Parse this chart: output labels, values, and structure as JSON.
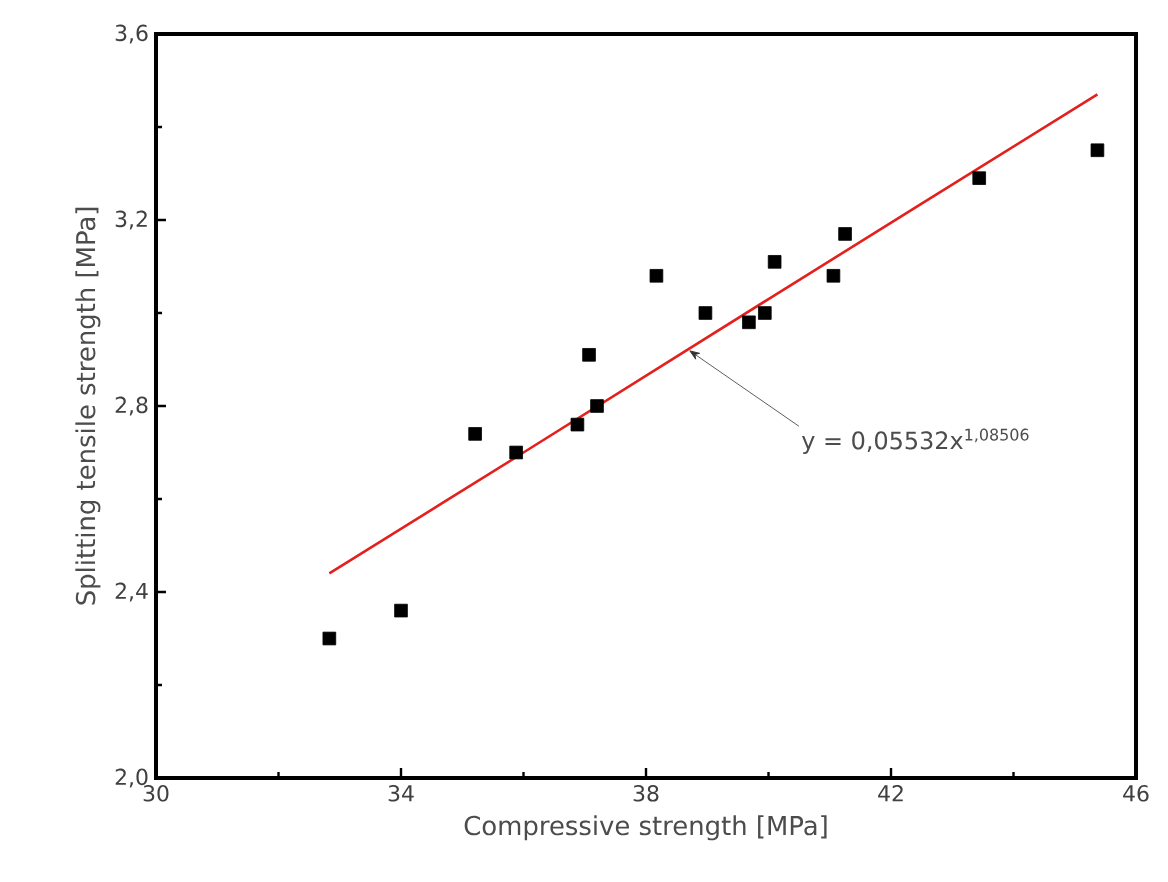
{
  "chart_data": {
    "type": "scatter",
    "xlabel": "Compressive strength [MPa]",
    "ylabel": "Splitting tensile strength [MPa]",
    "xlim": [
      30,
      46
    ],
    "ylim": [
      2.0,
      3.6
    ],
    "xticks": [
      30,
      34,
      38,
      42,
      46
    ],
    "yticks": [
      {
        "value": 2.0,
        "label": "2,0"
      },
      {
        "value": 2.4,
        "label": "2,4"
      },
      {
        "value": 2.8,
        "label": "2,8"
      },
      {
        "value": 3.2,
        "label": "3,2"
      },
      {
        "value": 3.6,
        "label": "3,6"
      }
    ],
    "series": [
      {
        "color": "#000000",
        "marker": "square",
        "x": [
          32.83,
          34.0,
          35.21,
          35.88,
          36.88,
          37.07,
          37.2,
          38.17,
          38.97,
          39.68,
          39.94,
          40.1,
          41.06,
          41.25,
          43.44,
          45.37
        ],
        "values": [
          2.3,
          2.36,
          2.74,
          2.7,
          2.76,
          2.91,
          2.8,
          3.08,
          3.0,
          2.98,
          3.0,
          3.11,
          3.08,
          3.17,
          3.29,
          3.35
        ]
      },
      {
        "type": "line",
        "color": "#e3201b",
        "marker": "none",
        "x": [
          32.83,
          36.0,
          40.0,
          45.37
        ],
        "values": [
          2.44,
          2.7,
          3.03,
          3.47
        ]
      }
    ],
    "annotations": [
      {
        "text": "y = 0,05532x$^{1,08506}$",
        "x": 38.7,
        "y": 2.92
      }
    ]
  }
}
